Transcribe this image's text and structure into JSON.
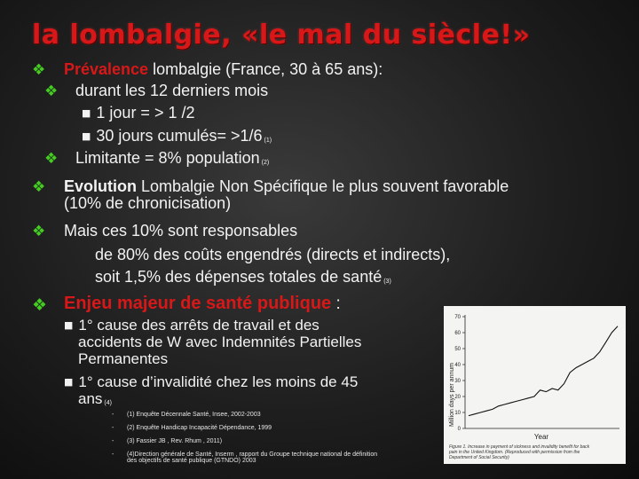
{
  "title": "la lombalgie, «le mal du siècle!»",
  "bullets": {
    "b1_red": "Prévalence",
    "b1_rest": " lombalgie (France, 30 à 65 ans):",
    "b1a": "durant les 12 derniers mois",
    "b1a_i": "1 jour = > 1 /2",
    "b1a_ii": "30 jours cumulés= >1/6",
    "b1a_ii_ref": "(1)",
    "b1b": "Limitante = 8% population",
    "b1b_ref": "(2)",
    "b2_bold": "Evolution",
    "b2_rest": " Lombalgie Non Spécifique le plus souvent favorable",
    "b2_line2": "(10% de chronicisation)",
    "b3_line1": "Mais ces 10% sont responsables",
    "b3_line2": "de 80% des coûts engendrés (directs et indirects),",
    "b3_line3": "soit 1,5% des dépenses totales de santé",
    "b3_ref": "(3)",
    "b4_red": "Enjeu majeur de santé publique",
    "b4_rest": " :",
    "b4a_line1": "1° cause des arrêts de travail et des",
    "b4a_line2": "accidents de W avec Indemnités Partielles",
    "b4a_line3": "Permanentes",
    "b4b_line1": "1° cause d’invalidité chez les moins de 45",
    "b4b_line2": "ans",
    "b4b_ref": "(4)"
  },
  "references": [
    "(1) Enquête Décennale Santé, Insee, 2002-2003",
    "(2) Enquête Handicap Incapacité Dépendance, 1999",
    "(3) Fassier JB , Rev. Rhum , 2011)",
    "(4)Direction générale de Santé, Inserm , rapport du Groupe technique national de définition",
    "des objectifs de santé publique (GTNDO) 2003"
  ],
  "icons": {
    "bullet": "diamond-clover-icon",
    "sub_bullet": "square-icon"
  },
  "colors": {
    "title": "#d81818",
    "highlight": "#d81818",
    "bullet": "#44cc22"
  },
  "chart_data": {
    "type": "line",
    "ylabel": "Million days per annum",
    "xlabel": "Year",
    "ylim": [
      0,
      70
    ],
    "yticks": [
      0,
      10,
      20,
      30,
      40,
      50,
      60,
      70
    ],
    "caption_line1": "Figure 1. Increase in payment of sickness and invalidity benefit for back",
    "caption_line2": "pain in the United Kingdom. (Reproduced with permission from the",
    "caption_line3": "Department of Social Security)",
    "series": [
      {
        "values": [
          8,
          9,
          10,
          11,
          12,
          14,
          15,
          16,
          17,
          18,
          19,
          20,
          24,
          23,
          25,
          24,
          28,
          35,
          38,
          40,
          42,
          44,
          48,
          54,
          60,
          64
        ]
      }
    ]
  }
}
